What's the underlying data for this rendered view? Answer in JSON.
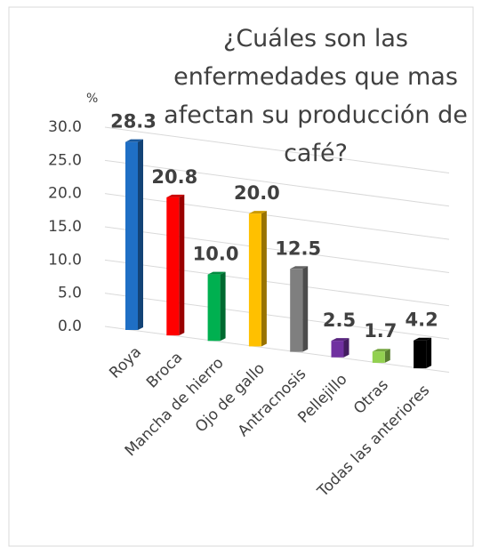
{
  "chart_data": {
    "type": "bar3d",
    "title": "¿Cuáles son las enfermedades que mas afectan su producción de café?",
    "y_axis_label": "%",
    "categories": [
      "Roya",
      "Broca",
      "Mancha de hierro",
      "Ojo de gallo",
      "Antracnosis",
      "Pellejillo",
      "Otras",
      "Todas las anteriores"
    ],
    "values": [
      28.3,
      20.8,
      10.0,
      20.0,
      12.5,
      2.5,
      1.7,
      4.2
    ],
    "value_labels": [
      "28.3",
      "20.8",
      "10.0",
      "20.0",
      "12.5",
      "2.5",
      "1.7",
      "4.2"
    ],
    "colors": [
      "#1f6fc5",
      "#ff0000",
      "#00b050",
      "#ffc000",
      "#7f7f7f",
      "#7030a0",
      "#92d050",
      "#000000"
    ],
    "ylim": [
      0,
      30
    ],
    "yticks": [
      {
        "value": 0,
        "label": "0.0"
      },
      {
        "value": 5,
        "label": "5.0"
      },
      {
        "value": 10,
        "label": "10.0"
      },
      {
        "value": 15,
        "label": "15.0"
      },
      {
        "value": 20,
        "label": "20.0"
      },
      {
        "value": 25,
        "label": "25.0"
      },
      {
        "value": 30,
        "label": "30.0"
      }
    ],
    "grid": true
  }
}
